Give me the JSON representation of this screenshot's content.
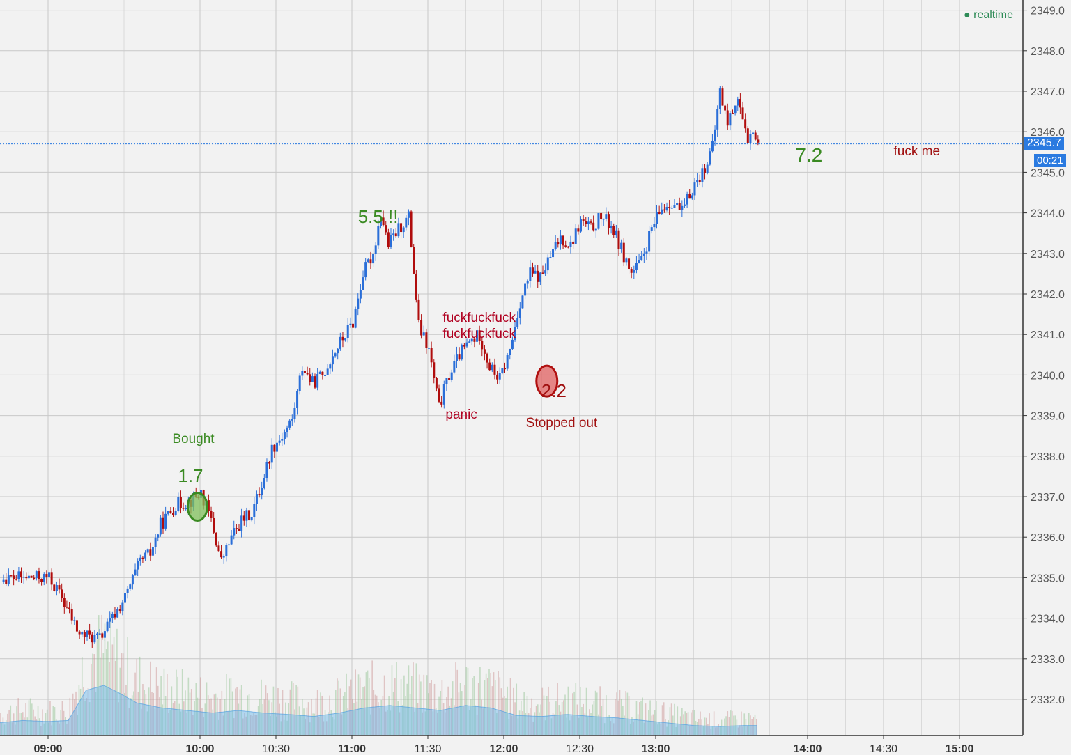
{
  "chart_data": {
    "type": "candlestick",
    "x_ticks": [
      {
        "label": "09:00",
        "t": 540,
        "bold": true
      },
      {
        "label": "10:00",
        "t": 600,
        "bold": true
      },
      {
        "label": "10:30",
        "t": 630,
        "bold": false
      },
      {
        "label": "11:00",
        "t": 660,
        "bold": true
      },
      {
        "label": "11:30",
        "t": 690,
        "bold": false
      },
      {
        "label": "12:00",
        "t": 720,
        "bold": true
      },
      {
        "label": "12:30",
        "t": 750,
        "bold": false
      },
      {
        "label": "13:00",
        "t": 780,
        "bold": true
      },
      {
        "label": "14:00",
        "t": 840,
        "bold": true
      },
      {
        "label": "14:30",
        "t": 870,
        "bold": false
      },
      {
        "label": "15:00",
        "t": 900,
        "bold": true
      }
    ],
    "y_ticks": [
      "2332.0",
      "2333.0",
      "2334.0",
      "2335.0",
      "2336.0",
      "2337.0",
      "2338.0",
      "2339.0",
      "2340.0",
      "2341.0",
      "2342.0",
      "2343.0",
      "2344.0",
      "2345.0",
      "2346.0",
      "2347.0",
      "2348.0",
      "2349.0"
    ],
    "price_path": [
      [
        540,
        2335.0
      ],
      [
        545,
        2334.5
      ],
      [
        552,
        2333.6
      ],
      [
        560,
        2333.5
      ],
      [
        570,
        2334.5
      ],
      [
        576,
        2335.4
      ],
      [
        580,
        2335.6
      ],
      [
        584,
        2336.3
      ],
      [
        590,
        2336.8
      ],
      [
        596,
        2336.9
      ],
      [
        600,
        2337.1
      ],
      [
        604,
        2336.4
      ],
      [
        608,
        2335.4
      ],
      [
        612,
        2336.0
      ],
      [
        616,
        2336.4
      ],
      [
        620,
        2336.6
      ],
      [
        624,
        2337.3
      ],
      [
        628,
        2338.2
      ],
      [
        632,
        2338.5
      ],
      [
        636,
        2338.9
      ],
      [
        640,
        2340.2
      ],
      [
        644,
        2339.8
      ],
      [
        648,
        2340.0
      ],
      [
        652,
        2340.5
      ],
      [
        656,
        2340.9
      ],
      [
        660,
        2341.3
      ],
      [
        664,
        2342.5
      ],
      [
        668,
        2343.0
      ],
      [
        671,
        2344.0
      ],
      [
        674,
        2343.2
      ],
      [
        678,
        2343.6
      ],
      [
        682,
        2343.9
      ],
      [
        686,
        2341.2
      ],
      [
        690,
        2340.6
      ],
      [
        694,
        2339.2
      ],
      [
        698,
        2340.0
      ],
      [
        702,
        2340.5
      ],
      [
        706,
        2340.8
      ],
      [
        710,
        2341.0
      ],
      [
        714,
        2340.2
      ],
      [
        718,
        2339.9
      ],
      [
        722,
        2340.6
      ],
      [
        726,
        2341.8
      ],
      [
        730,
        2342.5
      ],
      [
        734,
        2342.4
      ],
      [
        738,
        2342.9
      ],
      [
        742,
        2343.4
      ],
      [
        746,
        2343.2
      ],
      [
        750,
        2343.8
      ],
      [
        754,
        2343.6
      ],
      [
        758,
        2343.9
      ],
      [
        762,
        2343.7
      ],
      [
        766,
        2343.1
      ],
      [
        770,
        2342.5
      ],
      [
        774,
        2342.8
      ],
      [
        778,
        2343.6
      ],
      [
        782,
        2344.1
      ],
      [
        786,
        2344.3
      ],
      [
        790,
        2344.0
      ],
      [
        794,
        2344.6
      ],
      [
        798,
        2345.0
      ],
      [
        802,
        2345.6
      ],
      [
        805,
        2347.0
      ],
      [
        808,
        2346.2
      ],
      [
        812,
        2346.9
      ],
      [
        816,
        2345.6
      ],
      [
        818,
        2346.1
      ],
      [
        820,
        2345.6
      ]
    ],
    "volume": {
      "x_start": 510,
      "x_end": 820,
      "levels": [
        [
          510,
          0.35
        ],
        [
          520,
          0.25
        ],
        [
          530,
          0.3
        ],
        [
          540,
          0.28
        ],
        [
          548,
          0.3
        ],
        [
          555,
          0.9
        ],
        [
          562,
          1.0
        ],
        [
          568,
          0.85
        ],
        [
          575,
          0.65
        ],
        [
          585,
          0.55
        ],
        [
          595,
          0.5
        ],
        [
          605,
          0.45
        ],
        [
          615,
          0.5
        ],
        [
          625,
          0.45
        ],
        [
          635,
          0.42
        ],
        [
          645,
          0.38
        ],
        [
          655,
          0.45
        ],
        [
          665,
          0.55
        ],
        [
          675,
          0.6
        ],
        [
          685,
          0.55
        ],
        [
          695,
          0.5
        ],
        [
          705,
          0.6
        ],
        [
          715,
          0.55
        ],
        [
          725,
          0.4
        ],
        [
          735,
          0.38
        ],
        [
          745,
          0.42
        ],
        [
          755,
          0.38
        ],
        [
          765,
          0.35
        ],
        [
          775,
          0.3
        ],
        [
          785,
          0.25
        ],
        [
          795,
          0.2
        ],
        [
          805,
          0.18
        ],
        [
          815,
          0.2
        ],
        [
          820,
          0.2
        ]
      ]
    },
    "last_price": "2345.7",
    "countdown": "00:21",
    "realtime_label": "realtime",
    "annotations": [
      {
        "text": "Bought",
        "color": "#3a8a22",
        "size": 19,
        "t": 599,
        "p": 2338.4,
        "dx": -36,
        "dy": 0
      },
      {
        "text": "1.7",
        "color": "#3a8a22",
        "size": 26,
        "t": 599,
        "p": 2337.5,
        "dx": -28,
        "dy": 0
      },
      {
        "text": "5.5 !!",
        "color": "#3a8a22",
        "size": 26,
        "t": 669,
        "p": 2343.9,
        "dx": -24,
        "dy": 0
      },
      {
        "text": "fuckfuckfuck",
        "color": "#b00020",
        "size": 19,
        "t": 697,
        "p": 2341.4,
        "dx": -4,
        "dy": 0
      },
      {
        "text": "fuckfuckfuck",
        "color": "#b00020",
        "size": 19,
        "t": 697,
        "p": 2341.0,
        "dx": -4,
        "dy": 0
      },
      {
        "text": "panic",
        "color": "#b00020",
        "size": 19,
        "t": 697,
        "p": 2339.0,
        "dx": 0,
        "dy": 0
      },
      {
        "text": "2.2",
        "color": "#a01010",
        "size": 26,
        "t": 737,
        "p": 2339.6,
        "dx": -8,
        "dy": 0
      },
      {
        "text": "Stopped out",
        "color": "#a01010",
        "size": 19,
        "t": 737,
        "p": 2338.8,
        "dx": -30,
        "dy": 0
      },
      {
        "text": "7.2",
        "color": "#3a8a22",
        "size": 28,
        "t": 839,
        "p": 2345.4,
        "dx": -14,
        "dy": 0
      },
      {
        "text": "fuck me",
        "color": "#a01010",
        "size": 19,
        "t": 874,
        "p": 2345.5,
        "dx": 0,
        "dy": 0
      }
    ],
    "markers": [
      {
        "name": "buy-marker",
        "t": 599,
        "p": 2336.75,
        "rx": 14,
        "ry": 20,
        "fill": "#7fbf5a",
        "stroke": "#3a8a22"
      },
      {
        "name": "stop-marker",
        "t": 737,
        "p": 2339.85,
        "rx": 15,
        "ry": 22,
        "fill": "#e06060",
        "stroke": "#b01010"
      }
    ],
    "colors": {
      "up": "#2a6ed8",
      "down": "#b00d0d",
      "grid": "#c8c8c8",
      "axis": "#333333",
      "tag": "#2a7ae0",
      "realtime": "#2e8b57"
    }
  }
}
